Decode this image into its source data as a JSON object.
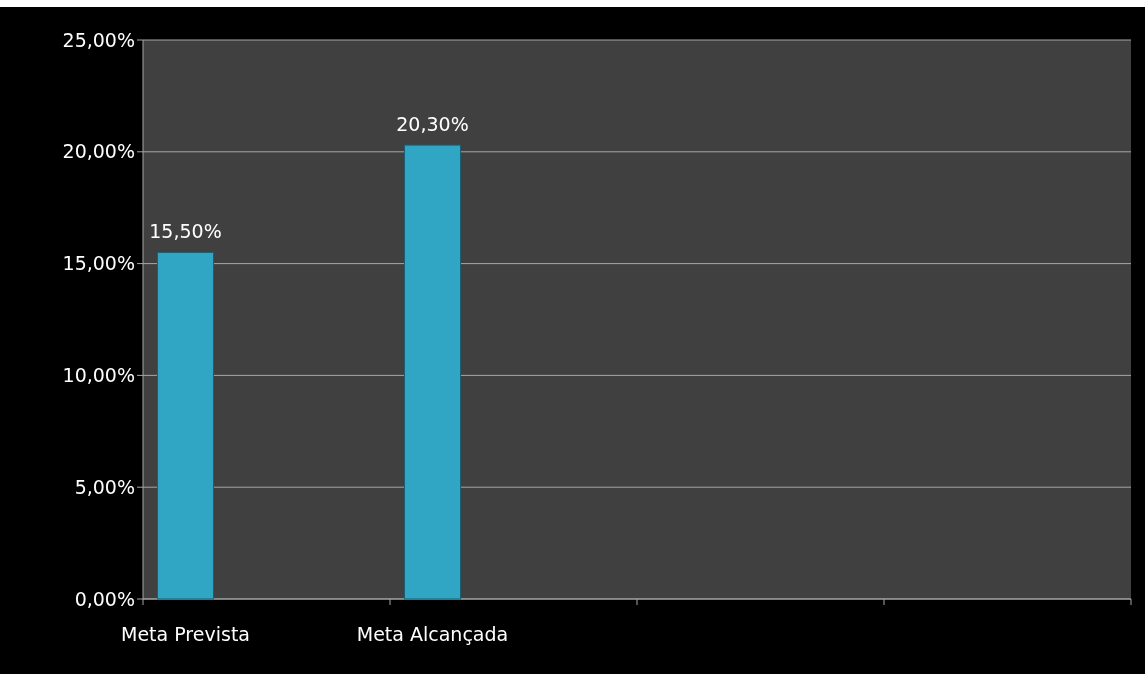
{
  "chart_data": {
    "type": "bar",
    "categories": [
      "Meta Prevista",
      "Meta Alcançada",
      null,
      null
    ],
    "values": [
      15.5,
      20.3,
      null,
      null
    ],
    "color": "#31a5c4",
    "value_labels": [
      "15,50%",
      "20,30%",
      null,
      null
    ],
    "ylim": [
      0,
      25
    ],
    "yticks": [
      {
        "value": 0,
        "label": "0,00%"
      },
      {
        "value": 5,
        "label": "5,00%"
      },
      {
        "value": 10,
        "label": "10,00%"
      },
      {
        "value": 15,
        "label": "15,00%"
      },
      {
        "value": 20,
        "label": "20,00%"
      },
      {
        "value": 25,
        "label": "25,00%"
      }
    ],
    "grid": "y"
  }
}
